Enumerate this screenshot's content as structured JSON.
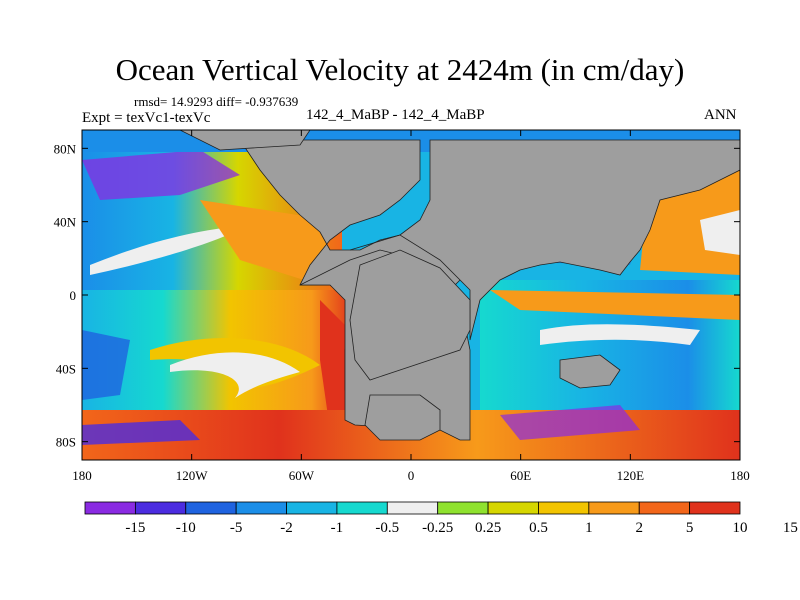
{
  "title": "Ocean Vertical Velocity at 2424m (in cm/day)",
  "stats": "rmsd= 14.9293 diff= -0.937639",
  "experiment": "Expt = texVc1-texVc",
  "subtitle": "142_4_MaBP - 142_4_MaBP",
  "season": "ANN",
  "map": {
    "projection": "cylindrical equidistant",
    "lon_range": [
      -180,
      180
    ],
    "lat_range": [
      -90,
      90
    ],
    "land_color": "#9e9e9e",
    "x_ticks": [
      {
        "lon": -180,
        "label": "180"
      },
      {
        "lon": -120,
        "label": "120W"
      },
      {
        "lon": -60,
        "label": "60W"
      },
      {
        "lon": 0,
        "label": "0"
      },
      {
        "lon": 60,
        "label": "60E"
      },
      {
        "lon": 120,
        "label": "120E"
      },
      {
        "lon": 180,
        "label": "180"
      }
    ],
    "y_ticks": [
      {
        "lat": 80,
        "label": "80N"
      },
      {
        "lat": 40,
        "label": "40N"
      },
      {
        "lat": 0,
        "label": "0"
      },
      {
        "lat": -40,
        "label": "40S"
      },
      {
        "lat": -80,
        "label": "80S"
      }
    ]
  },
  "colorbar": {
    "colors": [
      "#8a2be2",
      "#4b2ce0",
      "#1f63e0",
      "#1b8ee8",
      "#18b4e4",
      "#16d9cf",
      "#efefef",
      "#8fe22f",
      "#d6d600",
      "#f2c400",
      "#f79a1a",
      "#f2661a",
      "#e0321c"
    ],
    "labels": [
      "-15",
      "-10",
      "-5",
      "-2",
      "-1",
      "-0.5",
      "-0.25",
      "0.25",
      "0.5",
      "1",
      "2",
      "5",
      "10",
      "15"
    ]
  }
}
